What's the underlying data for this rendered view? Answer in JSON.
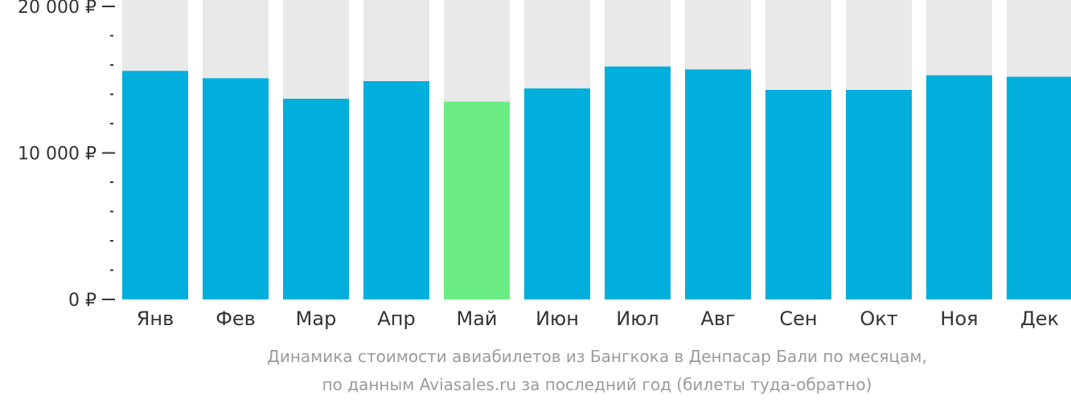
{
  "chart_data": {
    "type": "bar",
    "categories": [
      "Янв",
      "Фев",
      "Мар",
      "Апр",
      "Май",
      "Июн",
      "Июл",
      "Авг",
      "Сен",
      "Окт",
      "Ноя",
      "Дек"
    ],
    "values": [
      15600,
      15100,
      13700,
      14900,
      13500,
      14400,
      15900,
      15700,
      14300,
      14300,
      15300,
      15200
    ],
    "highlight_index": 4,
    "ylim": [
      0,
      20000
    ],
    "yticks": [
      {
        "value": 0,
        "label": "0 ₽"
      },
      {
        "value": 10000,
        "label": "10 000 ₽"
      },
      {
        "value": 20000,
        "label": "20 000 ₽"
      }
    ],
    "minor_tick_step": 2000,
    "title": "",
    "xlabel": "",
    "ylabel": "",
    "grid": false,
    "colors": {
      "bar": "#00afdb",
      "highlight": "#6ced84",
      "background_column": "#e9e9e9",
      "axis": "#333333"
    }
  },
  "caption": {
    "line1": "Динамика стоимости авиабилетов из Бангкока в Денпасар Бали по месяцам,",
    "line2": "по данным Aviasales.ru за последний год (билеты туда-обратно)"
  }
}
